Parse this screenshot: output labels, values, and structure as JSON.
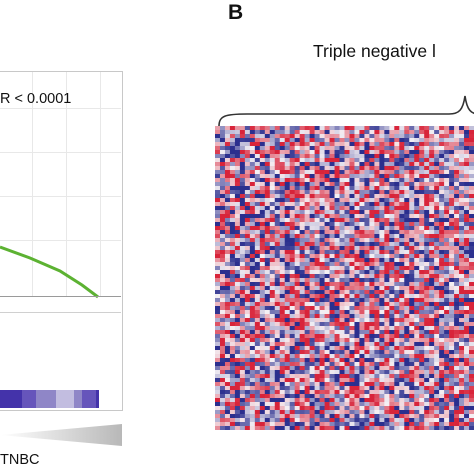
{
  "panel_a": {
    "fdr_label": "R < 0.0001",
    "group_label": "TNBC",
    "curve_color": "#5cb232",
    "rank_bar_colors": [
      "#4433aa",
      "#6655bb",
      "#8f86c7",
      "#c2bde0"
    ]
  },
  "panel_b": {
    "panel_letter": "B",
    "group_label": "Triple negative l",
    "heatmap_colors": {
      "high": "#d8243a",
      "low": "#2b2f8e",
      "mid": "#f4f0f4"
    }
  }
}
